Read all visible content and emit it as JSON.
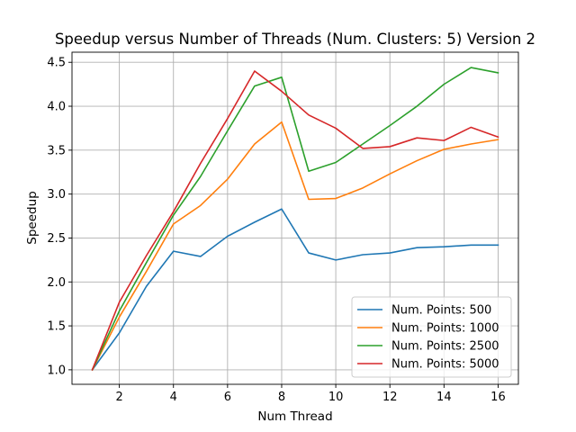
{
  "chart_data": {
    "type": "line",
    "title": "Speedup versus Number of Threads (Num. Clusters: 5) Version 2",
    "xlabel": "Num Thread",
    "ylabel": "Speedup",
    "xlim": [
      0.25,
      16.75
    ],
    "ylim": [
      0.835,
      4.615
    ],
    "xticks": [
      2,
      4,
      6,
      8,
      10,
      12,
      14,
      16
    ],
    "xtick_labels": [
      "2",
      "4",
      "6",
      "8",
      "10",
      "12",
      "14",
      "16"
    ],
    "yticks": [
      1.0,
      1.5,
      2.0,
      2.5,
      3.0,
      3.5,
      4.0,
      4.5
    ],
    "ytick_labels": [
      "1.0",
      "1.5",
      "2.0",
      "2.5",
      "3.0",
      "3.5",
      "4.0",
      "4.5"
    ],
    "grid": true,
    "legend_position": "lower-right",
    "x": [
      1,
      2,
      3,
      4,
      5,
      6,
      7,
      8,
      9,
      10,
      11,
      12,
      13,
      14,
      15,
      16
    ],
    "series": [
      {
        "name": "Num. Points: 500",
        "color": "#1f77b4",
        "values": [
          1.0,
          1.42,
          1.95,
          2.35,
          2.29,
          2.52,
          2.68,
          2.83,
          2.33,
          2.25,
          2.31,
          2.33,
          2.39,
          2.4,
          2.42,
          2.42
        ]
      },
      {
        "name": "Num. Points: 1000",
        "color": "#ff7f0e",
        "values": [
          1.0,
          1.6,
          2.12,
          2.66,
          2.87,
          3.17,
          3.57,
          3.82,
          2.94,
          2.95,
          3.07,
          3.23,
          3.38,
          3.51,
          3.57,
          3.62
        ]
      },
      {
        "name": "Num. Points: 2500",
        "color": "#2ca02c",
        "values": [
          1.0,
          1.67,
          2.22,
          2.76,
          3.2,
          3.72,
          4.23,
          4.33,
          3.26,
          3.36,
          3.57,
          3.78,
          4.0,
          4.25,
          4.44,
          4.38
        ]
      },
      {
        "name": "Num. Points: 5000",
        "color": "#d62728",
        "values": [
          1.0,
          1.77,
          2.3,
          2.8,
          3.35,
          3.86,
          4.4,
          4.17,
          3.9,
          3.75,
          3.52,
          3.54,
          3.64,
          3.61,
          3.76,
          3.65
        ]
      }
    ]
  }
}
